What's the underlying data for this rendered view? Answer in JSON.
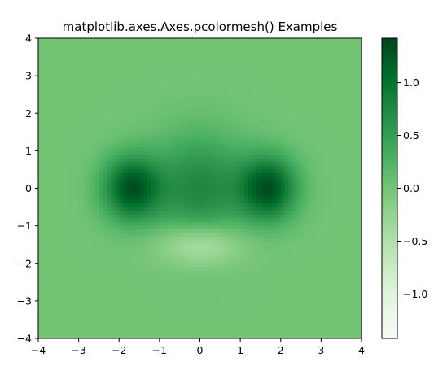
{
  "chart_data": {
    "type": "heatmap",
    "title": "matplotlib.axes.Axes.pcolormesh() Examples",
    "xlabel": "",
    "ylabel": "",
    "xlim": [
      -4,
      4
    ],
    "ylim": [
      -4,
      4
    ],
    "xticks": [
      -4,
      -3,
      -2,
      -1,
      0,
      1,
      2,
      3,
      4
    ],
    "yticks": [
      -4,
      -3,
      -2,
      -1,
      0,
      1,
      2,
      3,
      4
    ],
    "xtick_labels": [
      "−4",
      "−3",
      "−2",
      "−1",
      "0",
      "1",
      "2",
      "3",
      "4"
    ],
    "ytick_labels": [
      "−4",
      "−3",
      "−2",
      "−1",
      "0",
      "1",
      "2",
      "3",
      "4"
    ],
    "grid": false,
    "colormap": "Greens",
    "colormap_stops": [
      "#f7fcf5",
      "#e5f5e0",
      "#c7e9c0",
      "#a1d99b",
      "#74c476",
      "#41ab5d",
      "#238b45",
      "#006d2c",
      "#00441b"
    ],
    "vmin": -1.42,
    "vmax": 1.42,
    "colorbar": {
      "ticks": [
        -1.0,
        -0.5,
        0.0,
        0.5,
        1.0
      ],
      "tick_labels": [
        "−1.0",
        "−0.5",
        "0.0",
        "0.5",
        "1.0"
      ]
    },
    "field": {
      "description": "scalar field on [-4,4]x[-4,4] from sum of gaussian bumps",
      "components": [
        {
          "cx": 0.0,
          "cy": 0.0,
          "amp": 0.75,
          "sx": 0.85,
          "sy": 1.0
        },
        {
          "cx": -1.7,
          "cy": 0.0,
          "amp": 1.25,
          "sx": 0.5,
          "sy": 0.6
        },
        {
          "cx": 1.7,
          "cy": 0.0,
          "amp": 1.25,
          "sx": 0.5,
          "sy": 0.6
        },
        {
          "cx": 0.0,
          "cy": -1.5,
          "amp": -0.6,
          "sx": 0.75,
          "sy": 0.4
        }
      ]
    }
  }
}
